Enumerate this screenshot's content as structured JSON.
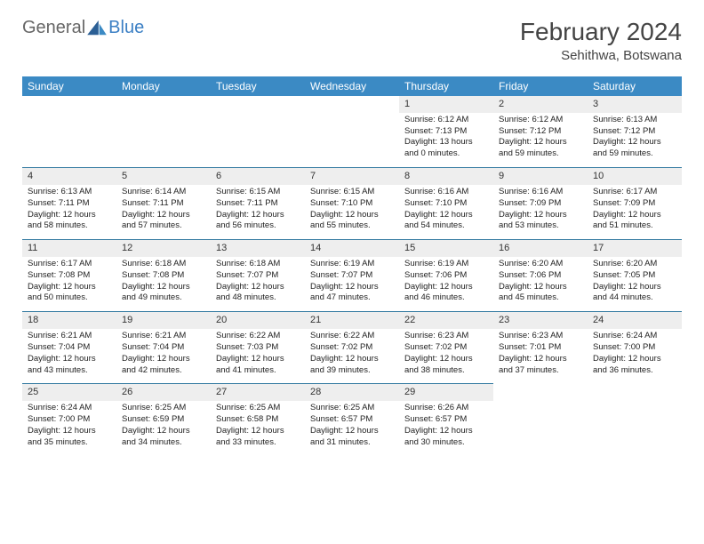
{
  "brand": {
    "part1": "General",
    "part2": "Blue"
  },
  "title": "February 2024",
  "location": "Sehithwa, Botswana",
  "colors": {
    "header_bg": "#3b8ac4",
    "header_text": "#ffffff",
    "daynum_bg": "#eeeeee",
    "row_border": "#3b7fa4",
    "logo_blue": "#3b7fc4",
    "text": "#333333"
  },
  "weekdays": [
    "Sunday",
    "Monday",
    "Tuesday",
    "Wednesday",
    "Thursday",
    "Friday",
    "Saturday"
  ],
  "weeks": [
    [
      null,
      null,
      null,
      null,
      {
        "n": "1",
        "sunrise": "6:12 AM",
        "sunset": "7:13 PM",
        "dlh": "13",
        "dlm": "0"
      },
      {
        "n": "2",
        "sunrise": "6:12 AM",
        "sunset": "7:12 PM",
        "dlh": "12",
        "dlm": "59"
      },
      {
        "n": "3",
        "sunrise": "6:13 AM",
        "sunset": "7:12 PM",
        "dlh": "12",
        "dlm": "59"
      }
    ],
    [
      {
        "n": "4",
        "sunrise": "6:13 AM",
        "sunset": "7:11 PM",
        "dlh": "12",
        "dlm": "58"
      },
      {
        "n": "5",
        "sunrise": "6:14 AM",
        "sunset": "7:11 PM",
        "dlh": "12",
        "dlm": "57"
      },
      {
        "n": "6",
        "sunrise": "6:15 AM",
        "sunset": "7:11 PM",
        "dlh": "12",
        "dlm": "56"
      },
      {
        "n": "7",
        "sunrise": "6:15 AM",
        "sunset": "7:10 PM",
        "dlh": "12",
        "dlm": "55"
      },
      {
        "n": "8",
        "sunrise": "6:16 AM",
        "sunset": "7:10 PM",
        "dlh": "12",
        "dlm": "54"
      },
      {
        "n": "9",
        "sunrise": "6:16 AM",
        "sunset": "7:09 PM",
        "dlh": "12",
        "dlm": "53"
      },
      {
        "n": "10",
        "sunrise": "6:17 AM",
        "sunset": "7:09 PM",
        "dlh": "12",
        "dlm": "51"
      }
    ],
    [
      {
        "n": "11",
        "sunrise": "6:17 AM",
        "sunset": "7:08 PM",
        "dlh": "12",
        "dlm": "50"
      },
      {
        "n": "12",
        "sunrise": "6:18 AM",
        "sunset": "7:08 PM",
        "dlh": "12",
        "dlm": "49"
      },
      {
        "n": "13",
        "sunrise": "6:18 AM",
        "sunset": "7:07 PM",
        "dlh": "12",
        "dlm": "48"
      },
      {
        "n": "14",
        "sunrise": "6:19 AM",
        "sunset": "7:07 PM",
        "dlh": "12",
        "dlm": "47"
      },
      {
        "n": "15",
        "sunrise": "6:19 AM",
        "sunset": "7:06 PM",
        "dlh": "12",
        "dlm": "46"
      },
      {
        "n": "16",
        "sunrise": "6:20 AM",
        "sunset": "7:06 PM",
        "dlh": "12",
        "dlm": "45"
      },
      {
        "n": "17",
        "sunrise": "6:20 AM",
        "sunset": "7:05 PM",
        "dlh": "12",
        "dlm": "44"
      }
    ],
    [
      {
        "n": "18",
        "sunrise": "6:21 AM",
        "sunset": "7:04 PM",
        "dlh": "12",
        "dlm": "43"
      },
      {
        "n": "19",
        "sunrise": "6:21 AM",
        "sunset": "7:04 PM",
        "dlh": "12",
        "dlm": "42"
      },
      {
        "n": "20",
        "sunrise": "6:22 AM",
        "sunset": "7:03 PM",
        "dlh": "12",
        "dlm": "41"
      },
      {
        "n": "21",
        "sunrise": "6:22 AM",
        "sunset": "7:02 PM",
        "dlh": "12",
        "dlm": "39"
      },
      {
        "n": "22",
        "sunrise": "6:23 AM",
        "sunset": "7:02 PM",
        "dlh": "12",
        "dlm": "38"
      },
      {
        "n": "23",
        "sunrise": "6:23 AM",
        "sunset": "7:01 PM",
        "dlh": "12",
        "dlm": "37"
      },
      {
        "n": "24",
        "sunrise": "6:24 AM",
        "sunset": "7:00 PM",
        "dlh": "12",
        "dlm": "36"
      }
    ],
    [
      {
        "n": "25",
        "sunrise": "6:24 AM",
        "sunset": "7:00 PM",
        "dlh": "12",
        "dlm": "35"
      },
      {
        "n": "26",
        "sunrise": "6:25 AM",
        "sunset": "6:59 PM",
        "dlh": "12",
        "dlm": "34"
      },
      {
        "n": "27",
        "sunrise": "6:25 AM",
        "sunset": "6:58 PM",
        "dlh": "12",
        "dlm": "33"
      },
      {
        "n": "28",
        "sunrise": "6:25 AM",
        "sunset": "6:57 PM",
        "dlh": "12",
        "dlm": "31"
      },
      {
        "n": "29",
        "sunrise": "6:26 AM",
        "sunset": "6:57 PM",
        "dlh": "12",
        "dlm": "30"
      },
      null,
      null
    ]
  ],
  "labels": {
    "sunrise_prefix": "Sunrise: ",
    "sunset_prefix": "Sunset: ",
    "daylight_prefix": "Daylight: ",
    "hours_word": " hours and ",
    "minutes_word": " minutes."
  }
}
